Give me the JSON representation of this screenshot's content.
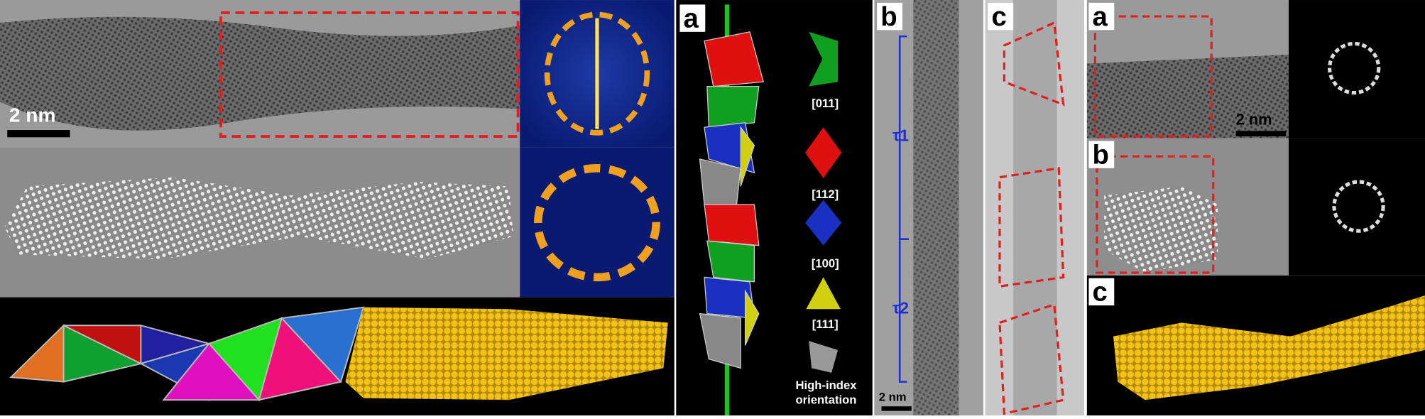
{
  "left_figure": {
    "scale_bar": "2 nm"
  },
  "middle_figure": {
    "panel_a": {
      "label": "a",
      "legend": [
        "[011]",
        "[112]",
        "[100]",
        "[111]",
        "High-index orientation"
      ]
    },
    "panel_b": {
      "label": "b",
      "periods": [
        "τ1",
        "τ2"
      ],
      "scale_bar": "2 nm"
    },
    "panel_c": {
      "label": "c"
    }
  },
  "right_figure": {
    "panels": [
      {
        "label": "a",
        "scale_bar": "2 nm"
      },
      {
        "label": "b"
      },
      {
        "label": "c"
      }
    ]
  }
}
